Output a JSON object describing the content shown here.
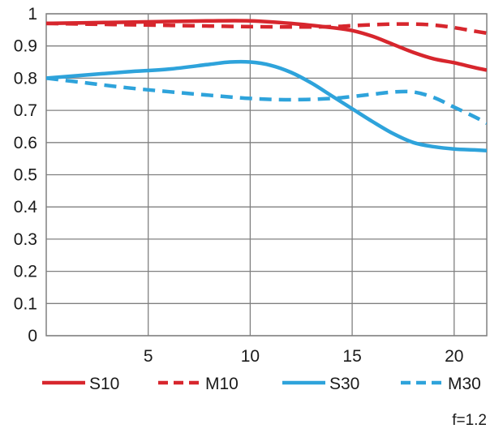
{
  "chart_data": {
    "type": "line",
    "xlim": [
      0,
      21.6
    ],
    "ylim": [
      0,
      1
    ],
    "grid": true,
    "legend_position": "bottom",
    "x_ticks": [
      5,
      10,
      15,
      20
    ],
    "x_tick_labels": [
      "5",
      "10",
      "15",
      "20"
    ],
    "y_ticks": [
      0,
      0.1,
      0.2,
      0.3,
      0.4,
      0.5,
      0.6,
      0.7,
      0.8,
      0.9,
      1
    ],
    "y_tick_labels": [
      "0",
      "0.1",
      "0.2",
      "0.3",
      "0.4",
      "0.5",
      "0.6",
      "0.7",
      "0.8",
      "0.9",
      "1"
    ],
    "annotation": "f=1.2",
    "series": [
      {
        "name": "S10",
        "color": "#d7262d",
        "dash": "solid",
        "x": [
          0,
          2,
          4,
          6,
          8,
          10,
          12,
          14,
          15,
          16,
          17,
          18,
          19,
          20,
          21,
          21.6
        ],
        "y": [
          0.97,
          0.972,
          0.974,
          0.976,
          0.978,
          0.978,
          0.97,
          0.957,
          0.948,
          0.93,
          0.905,
          0.88,
          0.86,
          0.848,
          0.833,
          0.825
        ]
      },
      {
        "name": "M10",
        "color": "#d7262d",
        "dash": "dashed",
        "x": [
          0,
          2,
          4,
          6,
          8,
          10,
          12,
          14,
          15,
          16,
          17,
          18,
          19,
          20,
          21,
          21.6
        ],
        "y": [
          0.97,
          0.968,
          0.966,
          0.964,
          0.962,
          0.96,
          0.959,
          0.96,
          0.963,
          0.966,
          0.968,
          0.968,
          0.965,
          0.957,
          0.946,
          0.94
        ]
      },
      {
        "name": "S30",
        "color": "#2ea3db",
        "dash": "solid",
        "x": [
          0,
          2,
          4,
          6,
          8,
          9,
          10,
          11,
          12,
          13,
          14,
          15,
          16,
          17,
          18,
          19,
          20,
          21,
          21.6
        ],
        "y": [
          0.8,
          0.81,
          0.82,
          0.828,
          0.843,
          0.85,
          0.85,
          0.84,
          0.818,
          0.785,
          0.745,
          0.705,
          0.665,
          0.628,
          0.6,
          0.587,
          0.58,
          0.577,
          0.575
        ]
      },
      {
        "name": "M30",
        "color": "#2ea3db",
        "dash": "dashed",
        "x": [
          0,
          2,
          4,
          6,
          8,
          10,
          12,
          14,
          15,
          16,
          17,
          18,
          19,
          20,
          21,
          21.6
        ],
        "y": [
          0.8,
          0.785,
          0.77,
          0.758,
          0.747,
          0.737,
          0.733,
          0.737,
          0.743,
          0.75,
          0.757,
          0.757,
          0.74,
          0.71,
          0.68,
          0.66
        ]
      }
    ]
  }
}
